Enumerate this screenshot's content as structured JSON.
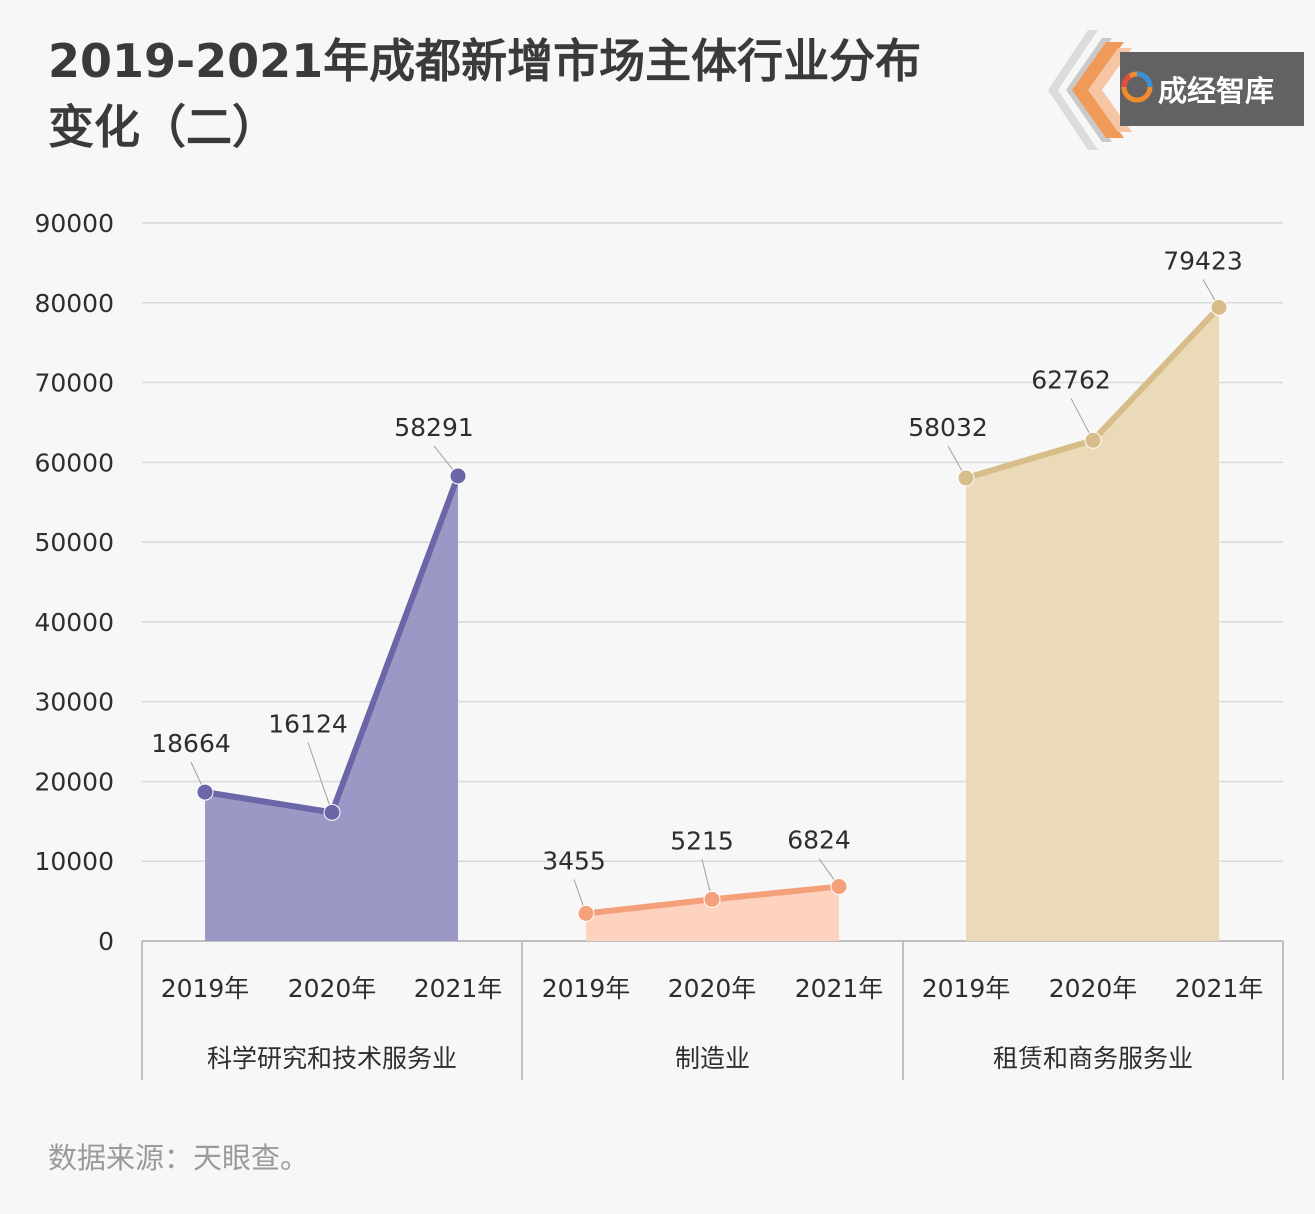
{
  "title": {
    "line1": "2019-2021年成都新增市场主体行业分布",
    "line2": "变化（二）"
  },
  "logo": {
    "text": "成经智库"
  },
  "source": "数据来源：天眼查。",
  "colors": {
    "background": "#f7f7f7",
    "grid": "#d9d9d9",
    "axis": "#bfbfbf",
    "groups": [
      {
        "line": "#6a66a8",
        "fill": "#9b98c6"
      },
      {
        "line": "#f4a07a",
        "fill": "#fdd3bf"
      },
      {
        "line": "#d6bd8a",
        "fill": "#ebdab8"
      }
    ],
    "logo_accent": "#f09a5a"
  },
  "chart_data": {
    "type": "area",
    "ylim": [
      0,
      90000
    ],
    "yticks": [
      0,
      10000,
      20000,
      30000,
      40000,
      50000,
      60000,
      70000,
      80000,
      90000
    ],
    "grid": true,
    "x": [
      "2019年",
      "2020年",
      "2021年"
    ],
    "groups": [
      {
        "name": "科学研究和技术服务业",
        "values": [
          18664,
          16124,
          58291
        ]
      },
      {
        "name": "制造业",
        "values": [
          3455,
          5215,
          6824
        ]
      },
      {
        "name": "租赁和商务服务业",
        "values": [
          58032,
          62762,
          79423
        ]
      }
    ]
  }
}
